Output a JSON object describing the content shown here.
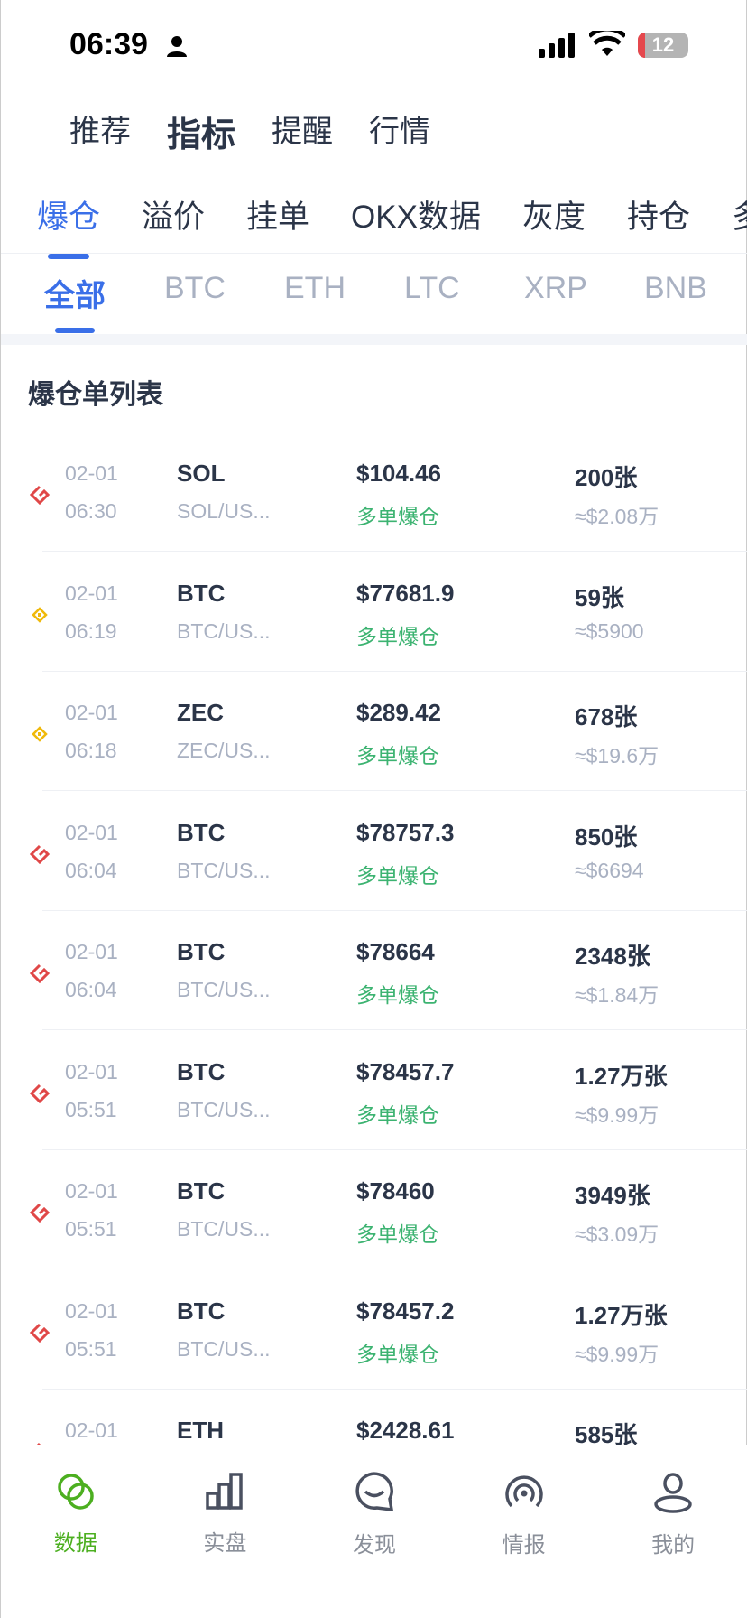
{
  "status": {
    "time": "06:39",
    "battery": "12"
  },
  "top_tabs": [
    "推荐",
    "指标",
    "提醒",
    "行情"
  ],
  "top_active": 1,
  "cat_tabs": [
    "爆仓",
    "溢价",
    "挂单",
    "OKX数据",
    "灰度",
    "持仓",
    "多"
  ],
  "coin_tabs": [
    "全部",
    "BTC",
    "ETH",
    "LTC",
    "XRP",
    "BNB"
  ],
  "section_title": "爆仓单列表",
  "colors": {
    "accent": "#3a6fe8",
    "long_liq": "#3cb371",
    "okx": "#e04848",
    "binance": "#f0b90b",
    "nav_active": "#4caf20"
  },
  "rows": [
    {
      "exchange": "okx",
      "date": "02-01",
      "time": "06:30",
      "symbol": "SOL",
      "pair": "SOL/US...",
      "price": "$104.46",
      "side": "多单爆仓",
      "amount": "200张",
      "usd": "≈$2.08万"
    },
    {
      "exchange": "binance",
      "date": "02-01",
      "time": "06:19",
      "symbol": "BTC",
      "pair": "BTC/US...",
      "price": "$77681.9",
      "side": "多单爆仓",
      "amount": "59张",
      "usd": "≈$5900"
    },
    {
      "exchange": "binance",
      "date": "02-01",
      "time": "06:18",
      "symbol": "ZEC",
      "pair": "ZEC/US...",
      "price": "$289.42",
      "side": "多单爆仓",
      "amount": "678张",
      "usd": "≈$19.6万"
    },
    {
      "exchange": "okx",
      "date": "02-01",
      "time": "06:04",
      "symbol": "BTC",
      "pair": "BTC/US...",
      "price": "$78757.3",
      "side": "多单爆仓",
      "amount": "850张",
      "usd": "≈$6694"
    },
    {
      "exchange": "okx",
      "date": "02-01",
      "time": "06:04",
      "symbol": "BTC",
      "pair": "BTC/US...",
      "price": "$78664",
      "side": "多单爆仓",
      "amount": "2348张",
      "usd": "≈$1.84万"
    },
    {
      "exchange": "okx",
      "date": "02-01",
      "time": "05:51",
      "symbol": "BTC",
      "pair": "BTC/US...",
      "price": "$78457.7",
      "side": "多单爆仓",
      "amount": "1.27万张",
      "usd": "≈$9.99万"
    },
    {
      "exchange": "okx",
      "date": "02-01",
      "time": "05:51",
      "symbol": "BTC",
      "pair": "BTC/US...",
      "price": "$78460",
      "side": "多单爆仓",
      "amount": "3949张",
      "usd": "≈$3.09万"
    },
    {
      "exchange": "okx",
      "date": "02-01",
      "time": "05:51",
      "symbol": "BTC",
      "pair": "BTC/US...",
      "price": "$78457.2",
      "side": "多单爆仓",
      "amount": "1.27万张",
      "usd": "≈$9.99万"
    },
    {
      "exchange": "okx",
      "date": "02-01",
      "time": "",
      "symbol": "ETH",
      "pair": "",
      "price": "$2428.61",
      "side": "",
      "amount": "585张",
      "usd": ""
    }
  ],
  "nav": [
    {
      "label": "数据",
      "icon": "data-rings-icon"
    },
    {
      "label": "实盘",
      "icon": "bar-chart-icon"
    },
    {
      "label": "发现",
      "icon": "chat-bubble-icon"
    },
    {
      "label": "情报",
      "icon": "signal-icon"
    },
    {
      "label": "我的",
      "icon": "user-icon"
    }
  ],
  "nav_active": 0
}
